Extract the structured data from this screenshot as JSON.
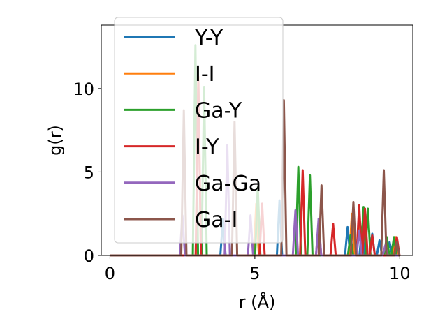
{
  "chart_data": {
    "type": "line",
    "title": "",
    "xlabel": "r (Å)",
    "ylabel": "g(r)",
    "xlim": [
      -0.3,
      10.45
    ],
    "ylim": [
      0,
      13.8
    ],
    "xticks": [
      0,
      5,
      10
    ],
    "yticks": [
      0,
      5,
      10
    ],
    "grid": false,
    "legend_position": "upper-left",
    "series": [
      {
        "name": "Y-Y",
        "color": "#1f77b4",
        "peaks": [
          [
            3.9,
            2.2
          ],
          [
            5.85,
            3.3
          ],
          [
            8.2,
            1.7
          ],
          [
            8.7,
            1.7
          ],
          [
            9.05,
            1.3
          ],
          [
            9.3,
            0.9
          ],
          [
            9.65,
            0.8
          ]
        ]
      },
      {
        "name": "I-I",
        "color": "#ff7f0e",
        "peaks": [
          [
            3.05,
            10.7
          ],
          [
            5.05,
            3.1
          ],
          [
            8.35,
            2.5
          ],
          [
            8.6,
            1.8
          ],
          [
            9.85,
            1.1
          ]
        ]
      },
      {
        "name": "Ga-Y",
        "color": "#2ca02c",
        "peaks": [
          [
            2.95,
            12.6
          ],
          [
            3.25,
            10.1
          ],
          [
            5.1,
            4.1
          ],
          [
            6.5,
            5.3
          ],
          [
            6.9,
            4.8
          ],
          [
            8.3,
            1.2
          ],
          [
            8.75,
            2.9
          ],
          [
            8.9,
            2.8
          ],
          [
            9.55,
            1.1
          ],
          [
            9.8,
            1.1
          ]
        ]
      },
      {
        "name": "I-Y",
        "color": "#d62728",
        "peaks": [
          [
            3.05,
            10.5
          ],
          [
            5.25,
            3.1
          ],
          [
            6.65,
            5.1
          ],
          [
            7.2,
            1.9
          ],
          [
            7.7,
            1.9
          ],
          [
            8.6,
            3.0
          ],
          [
            8.8,
            2.8
          ],
          [
            9.05,
            1.2
          ],
          [
            9.9,
            1.1
          ]
        ]
      },
      {
        "name": "Ga-Ga",
        "color": "#9467bd",
        "peaks": [
          [
            2.5,
            2.4
          ],
          [
            4.05,
            6.6
          ],
          [
            4.85,
            2.4
          ],
          [
            6.4,
            2.7
          ],
          [
            7.2,
            2.2
          ],
          [
            8.6,
            1.5
          ],
          [
            9.5,
            0.6
          ]
        ]
      },
      {
        "name": "Ga-I",
        "color": "#8c564b",
        "peaks": [
          [
            2.55,
            8.7
          ],
          [
            4.3,
            8.0
          ],
          [
            6.0,
            9.3
          ],
          [
            7.3,
            4.2
          ],
          [
            8.4,
            3.2
          ],
          [
            9.45,
            5.1
          ],
          [
            9.9,
            0.8
          ]
        ]
      }
    ]
  }
}
